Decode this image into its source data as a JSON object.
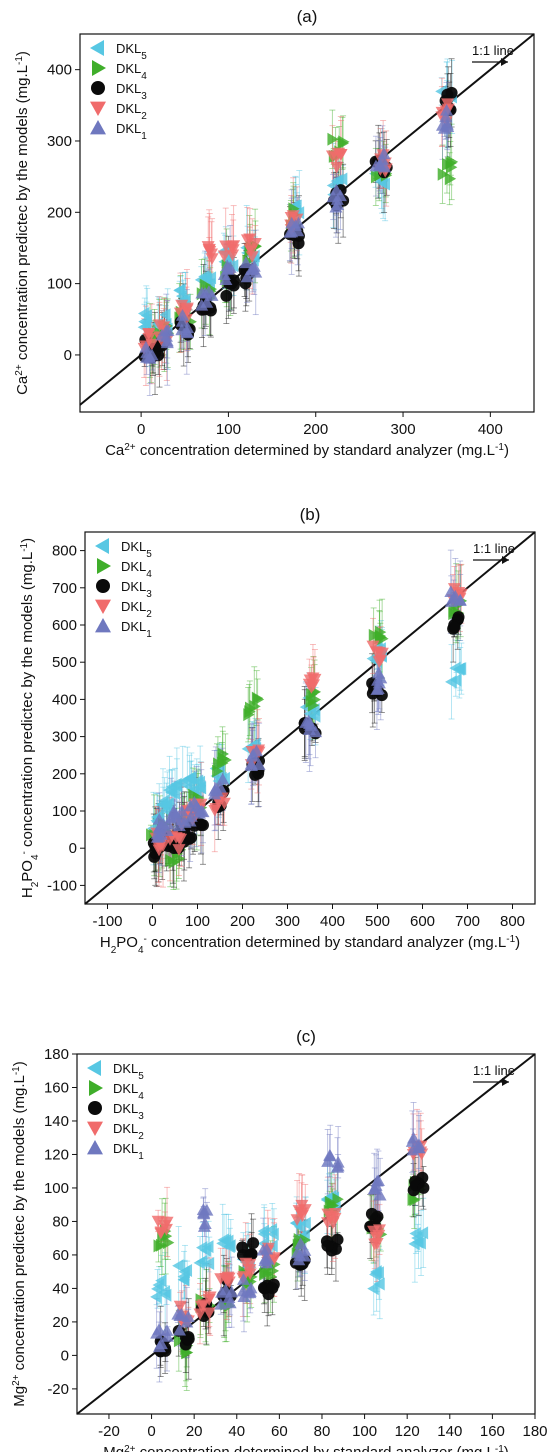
{
  "chart_data": [
    {
      "type": "scatter",
      "title": "(a)",
      "xlabel": "Ca2+ concentration determined by standard analyzer (mg.L-1)",
      "ylabel": "Ca2+ concentration predictec by the models (mg.L-1)",
      "xlim": [
        -70,
        450
      ],
      "ylim": [
        -80,
        450
      ],
      "xticks": [
        0,
        100,
        200,
        300,
        400
      ],
      "yticks": [
        0,
        100,
        200,
        300,
        400
      ],
      "one_to_one_label": "1:1 line",
      "legend_placement": "top-left",
      "categories": [
        10,
        25,
        50,
        75,
        100,
        125,
        175,
        225,
        275,
        350
      ],
      "series": [
        {
          "name": "DKL5",
          "legend_base": "DKL",
          "legend_sub": "5",
          "color": "#57c7e3",
          "marker": "triangle-left",
          "values": [
            52,
            45,
            82,
            105,
            135,
            140,
            210,
            235,
            248,
            360
          ]
        },
        {
          "name": "DKL4",
          "legend_base": "DKL",
          "legend_sub": "4",
          "color": "#3fae2a",
          "marker": "triangle-right",
          "values": [
            18,
            35,
            48,
            85,
            112,
            140,
            192,
            290,
            260,
            258
          ]
        },
        {
          "name": "DKL3",
          "legend_base": "DKL",
          "legend_sub": "3",
          "color": "#0a0a0a",
          "marker": "circle",
          "values": [
            8,
            12,
            35,
            66,
            96,
            108,
            164,
            220,
            268,
            355
          ]
        },
        {
          "name": "DKL2",
          "legend_base": "DKL",
          "legend_sub": "2",
          "color": "#f06b6b",
          "marker": "triangle-down",
          "values": [
            22,
            30,
            60,
            145,
            142,
            150,
            183,
            275,
            270,
            340
          ]
        },
        {
          "name": "DKL1",
          "legend_base": "DKL",
          "legend_sub": "1",
          "color": "#6f78bf",
          "marker": "triangle-up",
          "values": [
            3,
            25,
            43,
            78,
            118,
            122,
            178,
            220,
            272,
            330
          ]
        }
      ]
    },
    {
      "type": "scatter",
      "title": "(b)",
      "xlabel": "H2PO4- concentration determined by standard analyzer (mg.L-1)",
      "ylabel": "H2PO4- concentration predictec by the models (mg.L-1)",
      "xlim": [
        -150,
        850
      ],
      "ylim": [
        -150,
        850
      ],
      "xticks": [
        -100,
        0,
        100,
        200,
        300,
        400,
        500,
        600,
        700,
        800
      ],
      "yticks": [
        -100,
        0,
        100,
        200,
        300,
        400,
        500,
        600,
        700,
        800
      ],
      "one_to_one_label": "1:1 line",
      "legend_placement": "top-left",
      "categories": [
        8,
        25,
        50,
        75,
        100,
        150,
        225,
        350,
        500,
        675
      ],
      "series": [
        {
          "name": "DKL5",
          "legend_base": "DKL",
          "legend_sub": "5",
          "color": "#57c7e3",
          "marker": "triangle-left",
          "values": [
            60,
            120,
            150,
            170,
            160,
            200,
            260,
            380,
            520,
            460
          ]
        },
        {
          "name": "DKL4",
          "legend_base": "DKL",
          "legend_sub": "4",
          "color": "#3fae2a",
          "marker": "triangle-right",
          "values": [
            20,
            40,
            -20,
            90,
            120,
            230,
            380,
            400,
            580,
            650
          ]
        },
        {
          "name": "DKL3",
          "legend_base": "DKL",
          "legend_sub": "3",
          "color": "#0a0a0a",
          "marker": "circle",
          "values": [
            0,
            10,
            20,
            40,
            70,
            130,
            210,
            320,
            430,
            605
          ]
        },
        {
          "name": "DKL2",
          "legend_base": "DKL",
          "legend_sub": "2",
          "color": "#f06b6b",
          "marker": "triangle-down",
          "values": [
            30,
            20,
            10,
            80,
            100,
            120,
            245,
            440,
            520,
            690
          ]
        },
        {
          "name": "DKL1",
          "legend_base": "DKL",
          "legend_sub": "1",
          "color": "#6f78bf",
          "marker": "triangle-up",
          "values": [
            40,
            60,
            75,
            90,
            100,
            165,
            240,
            330,
            450,
            665
          ]
        }
      ]
    },
    {
      "type": "scatter",
      "title": "(c)",
      "xlabel": "Mg2+ concentration determined by standard analyzer (mg.L-1)",
      "ylabel": "Mg2+ concentration predictec by the models (mg.L-1)",
      "xlim": [
        -35,
        180
      ],
      "ylim": [
        -35,
        180
      ],
      "xticks": [
        -20,
        0,
        20,
        40,
        60,
        80,
        100,
        120,
        140,
        160,
        180
      ],
      "yticks": [
        -20,
        0,
        20,
        40,
        60,
        80,
        100,
        120,
        140,
        160,
        180
      ],
      "one_to_one_label": "1:1 line",
      "legend_placement": "top-left",
      "categories": [
        5,
        15,
        25,
        35,
        45,
        55,
        70,
        85,
        105,
        125
      ],
      "series": [
        {
          "name": "DKL5",
          "legend_base": "DKL",
          "legend_sub": "5",
          "color": "#57c7e3",
          "marker": "triangle-left",
          "values": [
            40,
            50,
            60,
            65,
            55,
            70,
            75,
            90,
            45,
            70
          ]
        },
        {
          "name": "DKL4",
          "legend_base": "DKL",
          "legend_sub": "4",
          "color": "#3fae2a",
          "marker": "triangle-right",
          "values": [
            70,
            5,
            28,
            35,
            45,
            52,
            65,
            90,
            75,
            98
          ]
        },
        {
          "name": "DKL3",
          "legend_base": "DKL",
          "legend_sub": "3",
          "color": "#0a0a0a",
          "marker": "circle",
          "values": [
            4,
            10,
            26,
            40,
            65,
            37,
            57,
            66,
            80,
            102
          ]
        },
        {
          "name": "DKL2",
          "legend_base": "DKL",
          "legend_sub": "2",
          "color": "#f06b6b",
          "marker": "triangle-down",
          "values": [
            75,
            25,
            30,
            45,
            50,
            60,
            85,
            80,
            70,
            120
          ]
        },
        {
          "name": "DKL1",
          "legend_base": "DKL",
          "legend_sub": "1",
          "color": "#6f78bf",
          "marker": "triangle-up",
          "values": [
            10,
            20,
            82,
            35,
            40,
            58,
            62,
            117,
            100,
            125
          ]
        }
      ]
    }
  ]
}
